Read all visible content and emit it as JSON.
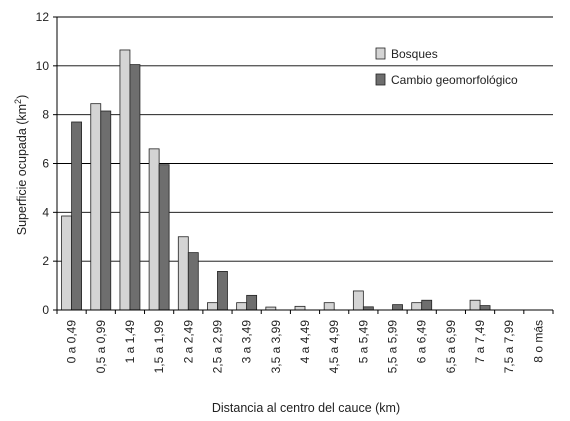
{
  "chart_data": {
    "type": "bar",
    "title": "",
    "xlabel": "Distancia al centro del cauce (km)",
    "ylabel_main": "Superficie ocupada (km",
    "ylabel_sup": "2",
    "ylabel_close": ")",
    "ylim": [
      0,
      12
    ],
    "yticks": [
      "0",
      "2",
      "4",
      "6",
      "8",
      "10",
      "12"
    ],
    "grid": true,
    "legend_position": "top-right",
    "categories": [
      "0 a 0,49",
      "0,5 a 0,99",
      "1 a 1,49",
      "1,5 a 1,99",
      "2 a 2,49",
      "2,5 a 2,99",
      "3 a 3,49",
      "3,5 a 3,99",
      "4 a 4,49",
      "4,5 a 4,99",
      "5 a 5,49",
      "5,5 a 5,99",
      "6 a 6,49",
      "6,5 a 6,99",
      "7 a 7,49",
      "7,5 a 7,99",
      "8 o más"
    ],
    "series": [
      {
        "name": "Bosques",
        "color": "#d4d4d4",
        "values": [
          3.85,
          8.45,
          10.65,
          6.6,
          3.0,
          0.3,
          0.3,
          0.12,
          0.15,
          0.3,
          0.78,
          0.0,
          0.3,
          0.0,
          0.4,
          0.0,
          0.0
        ]
      },
      {
        "name": "Cambio geomorfológico",
        "color": "#6e6e6e",
        "values": [
          7.7,
          8.15,
          10.05,
          5.95,
          2.35,
          1.58,
          0.6,
          0.0,
          0.0,
          0.0,
          0.13,
          0.22,
          0.4,
          0.0,
          0.18,
          0.0,
          0.0
        ]
      }
    ]
  }
}
